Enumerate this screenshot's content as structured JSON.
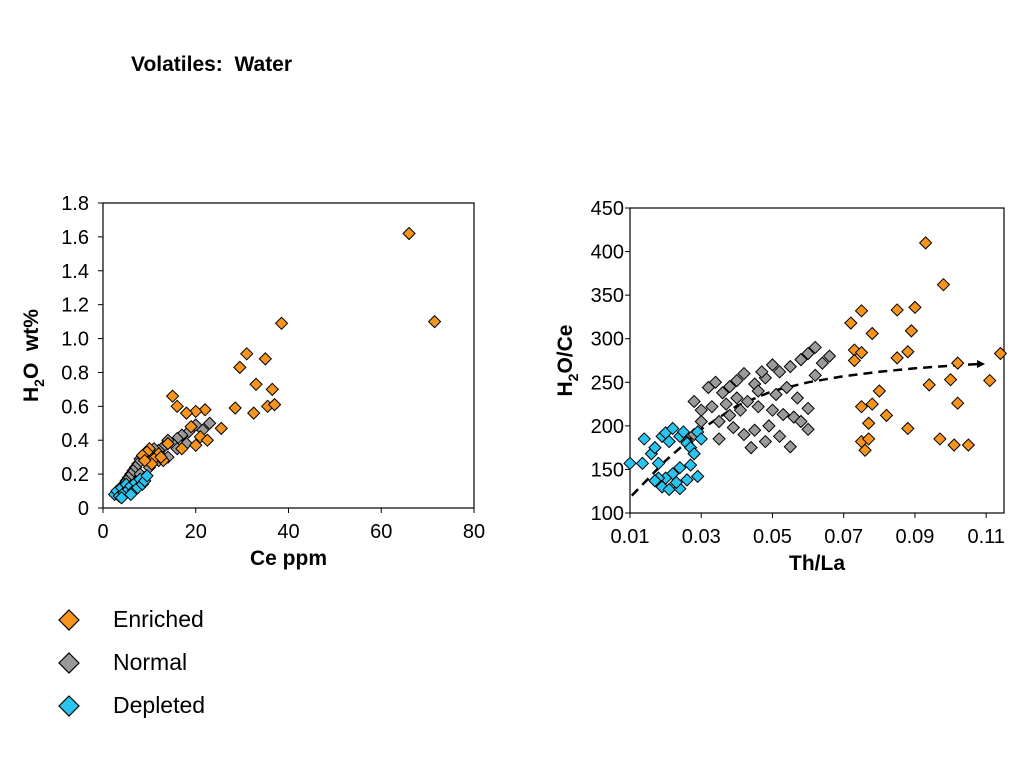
{
  "title": "Volatiles:  Water",
  "colors": {
    "Enriched": "#f7941d",
    "Normal": "#9a9a9a",
    "Depleted": "#29c4ef"
  },
  "legend": [
    {
      "label": "Enriched",
      "color": "#f7941d"
    },
    {
      "label": "Normal",
      "color": "#9a9a9a"
    },
    {
      "label": "Depleted",
      "color": "#29c4ef"
    }
  ],
  "chart_data": [
    {
      "type": "scatter",
      "xlabel": "Ce ppm",
      "ylabel": "H2O  wt%",
      "xlim": [
        0,
        80
      ],
      "ylim": [
        0,
        1.8
      ],
      "xticks": [
        0,
        20,
        40,
        60,
        80
      ],
      "yticks": [
        0,
        0.2,
        0.4,
        0.6,
        0.8,
        1.0,
        1.2,
        1.4,
        1.6,
        1.8
      ],
      "ytick_labels": [
        "0",
        "0.2",
        "0.4",
        "0.6",
        "0.8",
        "1.0",
        "1.2",
        "1.4",
        "1.6",
        "1.8"
      ],
      "grid": false,
      "series": [
        {
          "name": "Enriched",
          "points": [
            [
              66,
              1.62
            ],
            [
              71.5,
              1.1
            ],
            [
              38.5,
              1.09
            ],
            [
              31,
              0.91
            ],
            [
              35,
              0.88
            ],
            [
              29.5,
              0.83
            ],
            [
              33,
              0.73
            ],
            [
              36.5,
              0.7
            ],
            [
              35.5,
              0.6
            ],
            [
              37,
              0.61
            ],
            [
              32.5,
              0.56
            ],
            [
              28.5,
              0.59
            ],
            [
              25.5,
              0.47
            ],
            [
              22,
              0.58
            ],
            [
              20,
              0.57
            ],
            [
              18,
              0.56
            ],
            [
              16,
              0.6
            ],
            [
              15,
              0.66
            ],
            [
              19,
              0.48
            ],
            [
              21,
              0.42
            ],
            [
              22.5,
              0.4
            ],
            [
              17,
              0.35
            ],
            [
              20,
              0.37
            ],
            [
              12,
              0.32
            ],
            [
              10,
              0.35
            ],
            [
              9.5,
              0.33
            ],
            [
              8.5,
              0.31
            ],
            [
              11,
              0.29
            ],
            [
              13,
              0.28
            ],
            [
              10.5,
              0.26
            ],
            [
              14,
              0.38
            ],
            [
              12.5,
              0.3
            ],
            [
              9,
              0.28
            ]
          ]
        },
        {
          "name": "Normal",
          "points": [
            [
              23,
              0.5
            ],
            [
              21.5,
              0.46
            ],
            [
              20,
              0.49
            ],
            [
              18.5,
              0.45
            ],
            [
              17,
              0.43
            ],
            [
              16,
              0.41
            ],
            [
              15,
              0.38
            ],
            [
              14,
              0.4
            ],
            [
              13,
              0.36
            ],
            [
              12,
              0.34
            ],
            [
              11,
              0.35
            ],
            [
              10,
              0.33
            ],
            [
              9,
              0.3
            ],
            [
              8,
              0.29
            ],
            [
              7.5,
              0.26
            ],
            [
              7,
              0.24
            ],
            [
              6.5,
              0.22
            ],
            [
              6,
              0.2
            ],
            [
              8,
              0.2
            ],
            [
              9,
              0.18
            ],
            [
              5.5,
              0.18
            ],
            [
              5,
              0.16
            ],
            [
              4.5,
              0.14
            ],
            [
              10,
              0.24
            ],
            [
              12,
              0.28
            ],
            [
              14,
              0.3
            ],
            [
              16,
              0.35
            ],
            [
              18,
              0.38
            ]
          ]
        },
        {
          "name": "Depleted",
          "points": [
            [
              2.5,
              0.08
            ],
            [
              3,
              0.1
            ],
            [
              3.5,
              0.07
            ],
            [
              4,
              0.12
            ],
            [
              4.5,
              0.09
            ],
            [
              5,
              0.14
            ],
            [
              5.5,
              0.11
            ],
            [
              6,
              0.13
            ],
            [
              6.5,
              0.1
            ],
            [
              7,
              0.15
            ],
            [
              7.5,
              0.12
            ],
            [
              8,
              0.17
            ],
            [
              8.5,
              0.14
            ],
            [
              9,
              0.16
            ],
            [
              9.5,
              0.19
            ],
            [
              6,
              0.08
            ],
            [
              4,
              0.06
            ]
          ]
        }
      ]
    },
    {
      "type": "scatter",
      "xlabel": "Th/La",
      "ylabel": "H2O/Ce",
      "xlim": [
        0.01,
        0.115
      ],
      "ylim": [
        100,
        450
      ],
      "xticks": [
        0.01,
        0.03,
        0.05,
        0.07,
        0.09,
        0.11
      ],
      "xtick_labels": [
        "0.01",
        "0.03",
        "0.05",
        "0.07",
        "0.09",
        "0.11"
      ],
      "yticks": [
        100,
        150,
        200,
        250,
        300,
        350,
        400,
        450
      ],
      "grid": false,
      "trend_line": {
        "style": "dashed",
        "points": [
          [
            0.0105,
            120
          ],
          [
            0.02,
            160
          ],
          [
            0.03,
            196
          ],
          [
            0.04,
            223
          ],
          [
            0.05,
            240
          ],
          [
            0.06,
            250
          ],
          [
            0.07,
            257
          ],
          [
            0.08,
            262
          ],
          [
            0.09,
            266
          ],
          [
            0.1,
            269
          ],
          [
            0.108,
            271
          ]
        ]
      },
      "series": [
        {
          "name": "Enriched",
          "points": [
            [
              0.093,
              410
            ],
            [
              0.098,
              362
            ],
            [
              0.072,
              318
            ],
            [
              0.075,
              332
            ],
            [
              0.085,
              333
            ],
            [
              0.09,
              336
            ],
            [
              0.078,
              306
            ],
            [
              0.089,
              309
            ],
            [
              0.073,
              287
            ],
            [
              0.075,
              284
            ],
            [
              0.073,
              275
            ],
            [
              0.085,
              278
            ],
            [
              0.088,
              285
            ],
            [
              0.102,
              272
            ],
            [
              0.114,
              283
            ],
            [
              0.094,
              247
            ],
            [
              0.1,
              253
            ],
            [
              0.111,
              252
            ],
            [
              0.08,
              240
            ],
            [
              0.075,
              222
            ],
            [
              0.078,
              225
            ],
            [
              0.102,
              226
            ],
            [
              0.082,
              212
            ],
            [
              0.077,
              203
            ],
            [
              0.088,
              197
            ],
            [
              0.075,
              182
            ],
            [
              0.077,
              185
            ],
            [
              0.076,
              172
            ],
            [
              0.097,
              185
            ],
            [
              0.101,
              178
            ],
            [
              0.105,
              178
            ]
          ]
        },
        {
          "name": "Normal",
          "points": [
            [
              0.062,
              290
            ],
            [
              0.06,
              283
            ],
            [
              0.064,
              272
            ],
            [
              0.066,
              280
            ],
            [
              0.058,
              276
            ],
            [
              0.055,
              268
            ],
            [
              0.05,
              270
            ],
            [
              0.052,
              262
            ],
            [
              0.048,
              255
            ],
            [
              0.045,
              248
            ],
            [
              0.042,
              260
            ],
            [
              0.04,
              252
            ],
            [
              0.038,
              245
            ],
            [
              0.036,
              238
            ],
            [
              0.034,
              250
            ],
            [
              0.032,
              244
            ],
            [
              0.04,
              232
            ],
            [
              0.043,
              228
            ],
            [
              0.046,
              222
            ],
            [
              0.05,
              218
            ],
            [
              0.053,
              213
            ],
            [
              0.056,
              210
            ],
            [
              0.058,
              205
            ],
            [
              0.049,
              200
            ],
            [
              0.045,
              195
            ],
            [
              0.042,
              190
            ],
            [
              0.052,
              188
            ],
            [
              0.055,
              176
            ],
            [
              0.06,
              196
            ],
            [
              0.044,
              175
            ],
            [
              0.048,
              182
            ],
            [
              0.038,
              212
            ],
            [
              0.035,
              205
            ],
            [
              0.033,
              222
            ],
            [
              0.03,
              218
            ],
            [
              0.028,
              228
            ],
            [
              0.03,
              205
            ],
            [
              0.028,
              190
            ],
            [
              0.026,
              182
            ],
            [
              0.035,
              185
            ],
            [
              0.037,
              225
            ],
            [
              0.047,
              262
            ],
            [
              0.057,
              232
            ],
            [
              0.06,
              220
            ],
            [
              0.054,
              244
            ],
            [
              0.051,
              236
            ],
            [
              0.062,
              258
            ],
            [
              0.046,
              240
            ],
            [
              0.041,
              218
            ],
            [
              0.039,
              198
            ]
          ]
        },
        {
          "name": "Depleted",
          "points": [
            [
              0.01,
              157
            ],
            [
              0.0135,
              157
            ],
            [
              0.014,
              185
            ],
            [
              0.016,
              168
            ],
            [
              0.017,
              175
            ],
            [
              0.018,
              157
            ],
            [
              0.019,
              188
            ],
            [
              0.02,
              192
            ],
            [
              0.021,
              182
            ],
            [
              0.022,
              197
            ],
            [
              0.024,
              188
            ],
            [
              0.025,
              193
            ],
            [
              0.026,
              180
            ],
            [
              0.027,
              175
            ],
            [
              0.028,
              168
            ],
            [
              0.029,
              193
            ],
            [
              0.03,
              185
            ],
            [
              0.024,
              152
            ],
            [
              0.022,
              145
            ],
            [
              0.02,
              140
            ],
            [
              0.018,
              140
            ],
            [
              0.019,
              130
            ],
            [
              0.021,
              127
            ],
            [
              0.024,
              128
            ],
            [
              0.026,
              138
            ],
            [
              0.029,
              142
            ],
            [
              0.017,
              137
            ],
            [
              0.023,
              135
            ],
            [
              0.027,
              155
            ]
          ]
        }
      ]
    }
  ]
}
